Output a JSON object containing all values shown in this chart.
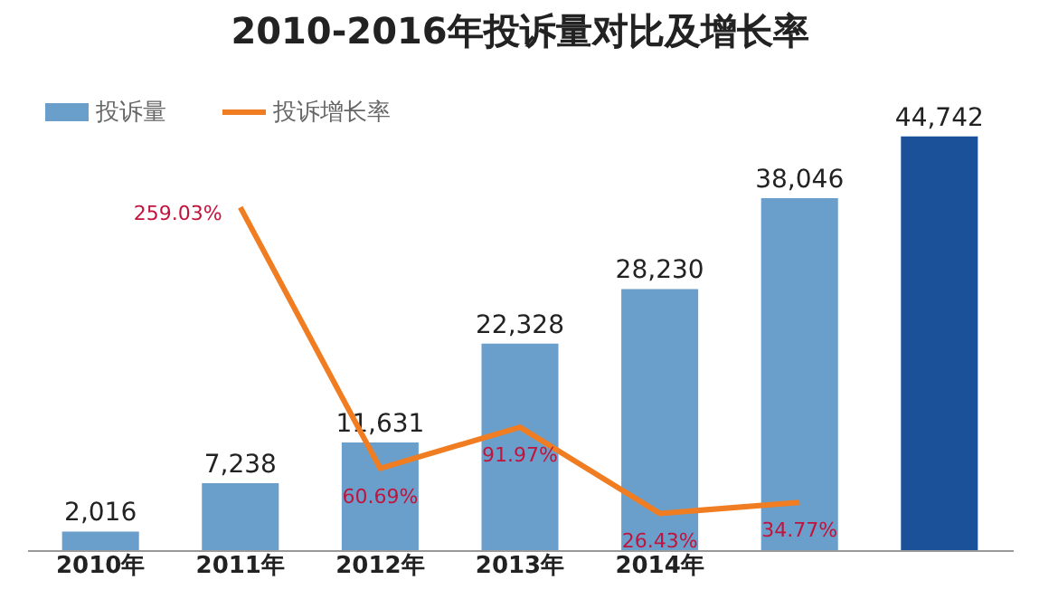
{
  "chart_data": {
    "type": "bar",
    "title": "2010-2016年投诉量对比及增长率",
    "categories": [
      "2010年",
      "2011年",
      "2012年",
      "2013年",
      "2014年",
      null,
      null
    ],
    "series": [
      {
        "name": "投诉量",
        "colors": [
          "#6a9fcc",
          "#6a9fcc",
          "#6a9fcc",
          "#6a9fcc",
          "#6a9fcc",
          "#6a9fcc",
          "#1a5199"
        ],
        "values": [
          2016,
          7238,
          11631,
          22328,
          28230,
          38046,
          44742
        ],
        "value_labels": [
          "2,016",
          "7,238",
          "11,631",
          "22,328",
          "28,230",
          "38,046",
          "44,742"
        ]
      },
      {
        "name": "投诉增长率",
        "type": "line",
        "axis": "y2",
        "color": "#f07d22",
        "values": [
          null,
          259.03,
          60.69,
          91.97,
          26.43,
          34.77,
          null
        ],
        "value_labels": [
          null,
          "259.03%",
          "60.69%",
          "91.97%",
          "26.43%",
          "34.77%",
          null
        ]
      }
    ],
    "tick_labels": "x",
    "legend": "top left",
    "grid": false
  }
}
